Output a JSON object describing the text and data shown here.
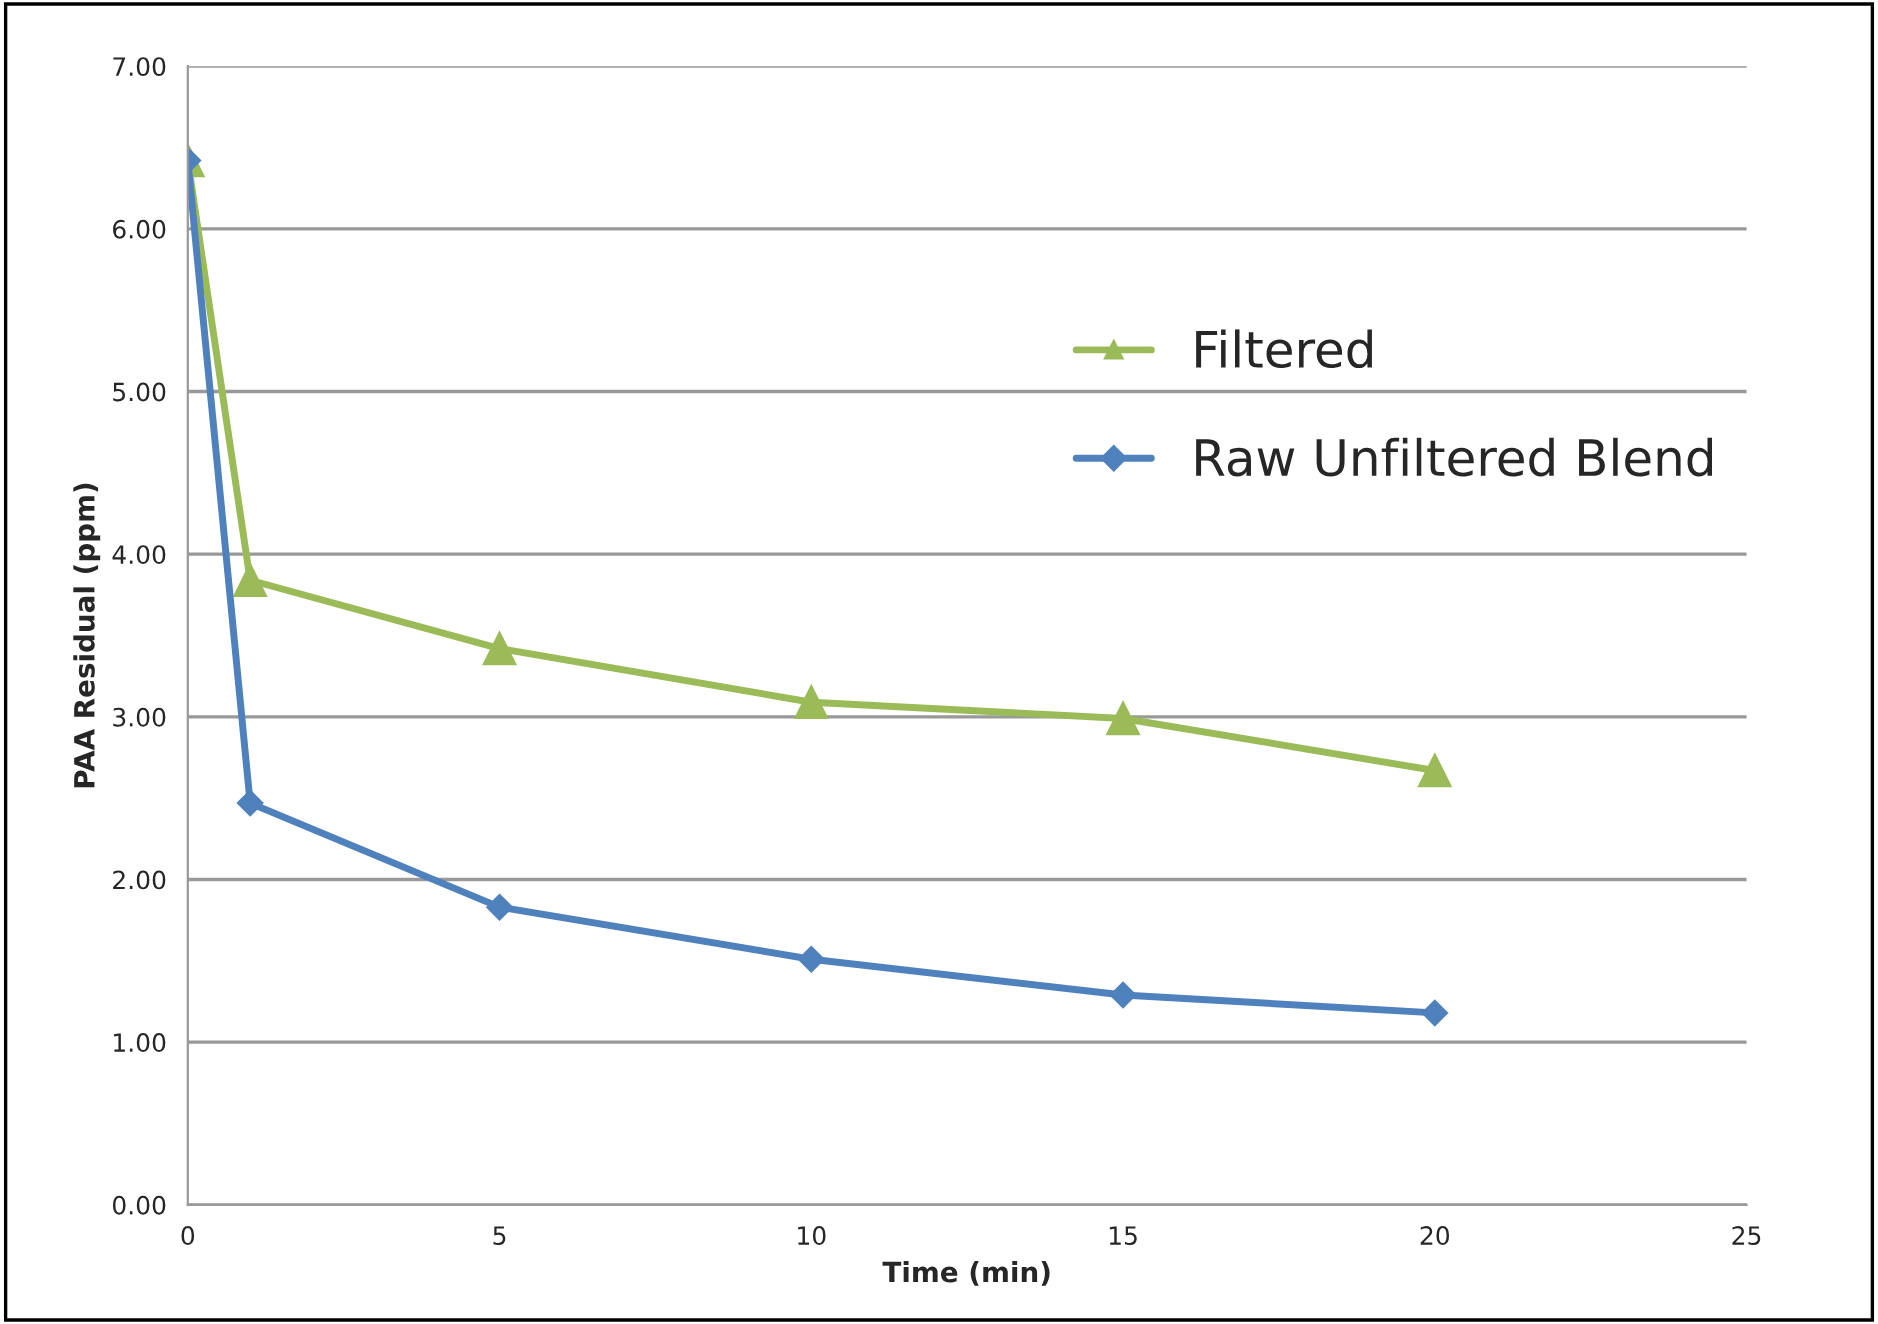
{
  "chart_data": {
    "type": "line",
    "xlabel": "Time (min)",
    "ylabel": "PAA Residual (ppm)",
    "series": [
      {
        "name": "Filtered",
        "color": "#9bbb59",
        "marker": "triangle",
        "x": [
          0,
          1,
          5,
          10,
          15,
          20
        ],
        "values": [
          6.42,
          3.84,
          3.42,
          3.09,
          2.99,
          2.67
        ]
      },
      {
        "name": "Raw Unfiltered Blend",
        "color": "#4f81bd",
        "marker": "diamond",
        "x": [
          0,
          1,
          5,
          10,
          15,
          20
        ],
        "values": [
          6.42,
          2.47,
          1.83,
          1.51,
          1.29,
          1.18
        ]
      }
    ],
    "xlim": [
      0,
      25
    ],
    "xticks": [
      0,
      5,
      10,
      15,
      20,
      25
    ],
    "ylim": [
      0,
      7
    ],
    "yticks": [
      {
        "value": 0,
        "label": "0.00"
      },
      {
        "value": 1,
        "label": "1.00"
      },
      {
        "value": 2,
        "label": "2.00"
      },
      {
        "value": 3,
        "label": "3.00"
      },
      {
        "value": 4,
        "label": "4.00"
      },
      {
        "value": 5,
        "label": "5.00"
      },
      {
        "value": 6,
        "label": "6.00"
      },
      {
        "value": 7,
        "label": "7.00"
      }
    ],
    "grid": "y",
    "legend": "right",
    "line_style": "solid"
  }
}
